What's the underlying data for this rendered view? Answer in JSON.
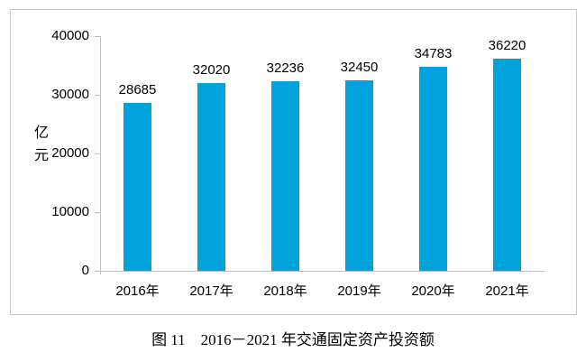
{
  "figure": {
    "caption": "图 11　2016－2021 年交通固定资产投资额"
  },
  "chart_data": {
    "type": "bar",
    "categories": [
      "2016年",
      "2017年",
      "2018年",
      "2019年",
      "2020年",
      "2021年"
    ],
    "values": [
      28685,
      32020,
      32236,
      32450,
      34783,
      36220
    ],
    "data_labels": [
      "28685",
      "32020",
      "32236",
      "32450",
      "34783",
      "36220"
    ],
    "title": "图 11　2016－2021 年交通固定资产投资额",
    "xlabel": "",
    "ylabel": "亿元",
    "ylim": [
      0,
      40000
    ],
    "ytick_interval": 10000,
    "ytick_labels": [
      "0",
      "10000",
      "20000",
      "30000",
      "40000"
    ],
    "grid": false,
    "legend": "none",
    "bar_color": "#00a2db",
    "axis_color": "#bfbfbf",
    "frame_border_color": "#c8c8c8",
    "label_color": "#000000"
  }
}
